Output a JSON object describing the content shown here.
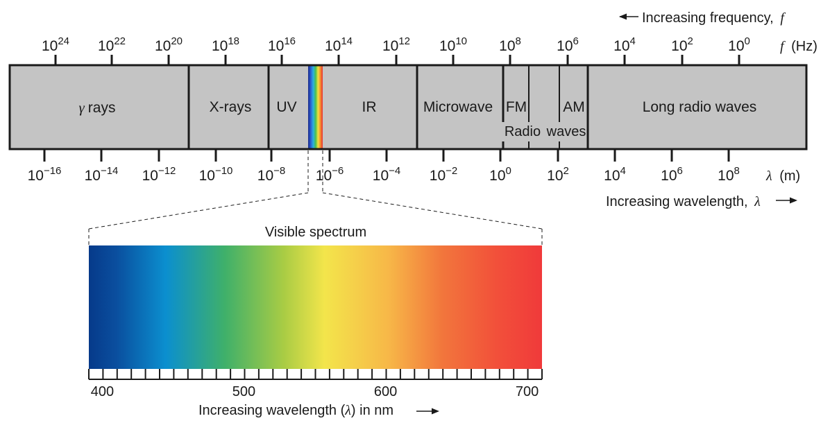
{
  "colors": {
    "band_fill": "#c4c4c4",
    "outline": "#1a1a1a",
    "spectrum_stops": [
      "#063a8a",
      "#0a4e9e",
      "#0b8fcf",
      "#3fb06a",
      "#a9cc44",
      "#f3e54b",
      "#f7b848",
      "#f2763c",
      "#f2503a",
      "#f03a3a"
    ]
  },
  "top_axis": {
    "arrow_text": "Increasing frequency,",
    "arrow_symbol": "f",
    "unit_symbol": "f",
    "unit_text": "(Hz)",
    "ticks": [
      {
        "base": "10",
        "exp": "24"
      },
      {
        "base": "10",
        "exp": "22"
      },
      {
        "base": "10",
        "exp": "20"
      },
      {
        "base": "10",
        "exp": "18"
      },
      {
        "base": "10",
        "exp": "16"
      },
      {
        "base": "10",
        "exp": "14"
      },
      {
        "base": "10",
        "exp": "12"
      },
      {
        "base": "10",
        "exp": "10"
      },
      {
        "base": "10",
        "exp": "8"
      },
      {
        "base": "10",
        "exp": "6"
      },
      {
        "base": "10",
        "exp": "4"
      },
      {
        "base": "10",
        "exp": "2"
      },
      {
        "base": "10",
        "exp": "0"
      }
    ]
  },
  "bottom_axis": {
    "unit_symbol": "λ",
    "unit_text": "(m)",
    "arrow_text": "Increasing wavelength,",
    "arrow_symbol": "λ",
    "ticks": [
      {
        "base": "10",
        "exp": "−16"
      },
      {
        "base": "10",
        "exp": "−14"
      },
      {
        "base": "10",
        "exp": "−12"
      },
      {
        "base": "10",
        "exp": "−10"
      },
      {
        "base": "10",
        "exp": "−8"
      },
      {
        "base": "10",
        "exp": "−6"
      },
      {
        "base": "10",
        "exp": "−4"
      },
      {
        "base": "10",
        "exp": "−2"
      },
      {
        "base": "10",
        "exp": "0"
      },
      {
        "base": "10",
        "exp": "2"
      },
      {
        "base": "10",
        "exp": "4"
      },
      {
        "base": "10",
        "exp": "6"
      },
      {
        "base": "10",
        "exp": "8"
      }
    ]
  },
  "bands": {
    "gamma_symbol": "γ",
    "gamma_text": "rays",
    "xrays": "X-rays",
    "uv": "UV",
    "ir": "IR",
    "microwave": "Microwave",
    "fm": "FM",
    "am": "AM",
    "radio_left": "Radio",
    "radio_right": "waves",
    "long_radio": "Long radio waves"
  },
  "visible": {
    "title": "Visible spectrum",
    "ticks": [
      "400",
      "500",
      "600",
      "700"
    ],
    "caption_prefix": "Increasing wavelength (",
    "caption_symbol": "λ",
    "caption_suffix": ") in nm"
  }
}
